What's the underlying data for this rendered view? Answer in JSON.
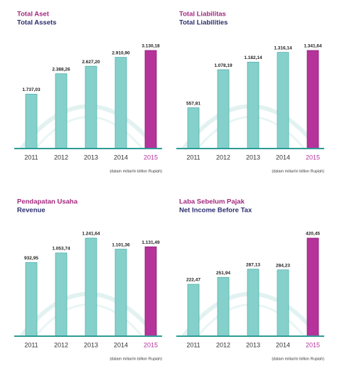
{
  "chart_data": [
    {
      "type": "bar",
      "title": "Total Aset",
      "subtitle": "Total Assets",
      "categories": [
        "2011",
        "2012",
        "2013",
        "2014",
        "2015"
      ],
      "values": [
        1737.03,
        2388.26,
        2627.2,
        2910.9,
        3130.18
      ],
      "value_labels": [
        "1.737,03",
        "2.388,26",
        "2.627,20",
        "2.910,90",
        "3.130,18"
      ],
      "colors": [
        "#86d0cc",
        "#86d0cc",
        "#86d0cc",
        "#86d0cc",
        "#b5339a"
      ],
      "category_colors": [
        "#333333",
        "#333333",
        "#333333",
        "#333333",
        "#b5339a"
      ],
      "note": "(dalam miliar/in billion Rupiah)"
    },
    {
      "type": "bar",
      "title": "Total Liabilitas",
      "subtitle": "Total Liabilities",
      "categories": [
        "2011",
        "2012",
        "2013",
        "2014",
        "2015"
      ],
      "values": [
        557.81,
        1078.19,
        1182.14,
        1316.14,
        1341.64
      ],
      "value_labels": [
        "557,81",
        "1.078,19",
        "1.182,14",
        "1.316,14",
        "1.341,64"
      ],
      "colors": [
        "#86d0cc",
        "#86d0cc",
        "#86d0cc",
        "#86d0cc",
        "#b5339a"
      ],
      "category_colors": [
        "#333333",
        "#333333",
        "#333333",
        "#333333",
        "#b5339a"
      ],
      "note": "(dalam miliar/in billion Rupiah)"
    },
    {
      "type": "bar",
      "title": "Pendapatan Usaha",
      "subtitle": "Revenue",
      "categories": [
        "2011",
        "2012",
        "2013",
        "2014",
        "2015"
      ],
      "values": [
        932.95,
        1053.74,
        1241.64,
        1101.36,
        1131.49
      ],
      "value_labels": [
        "932,95",
        "1.053,74",
        "1.241,64",
        "1.101,36",
        "1.131,49"
      ],
      "colors": [
        "#86d0cc",
        "#86d0cc",
        "#86d0cc",
        "#86d0cc",
        "#b5339a"
      ],
      "category_colors": [
        "#333333",
        "#333333",
        "#333333",
        "#333333",
        "#b5339a"
      ],
      "note": "(dalam miliar/in billion Rupiah)"
    },
    {
      "type": "bar",
      "title": "Laba Sebelum Pajak",
      "subtitle": "Net Income Before Tax",
      "categories": [
        "2011",
        "2012",
        "2013",
        "2014",
        "2015"
      ],
      "values": [
        222.47,
        251.94,
        287.13,
        284.23,
        420.45
      ],
      "value_labels": [
        "222,47",
        "251,94",
        "287,13",
        "284,23",
        "420,45"
      ],
      "colors": [
        "#86d0cc",
        "#86d0cc",
        "#86d0cc",
        "#86d0cc",
        "#b5339a"
      ],
      "category_colors": [
        "#333333",
        "#333333",
        "#333333",
        "#333333",
        "#b5339a"
      ],
      "note": "(dalam miliar/in billion Rupiah)"
    }
  ]
}
